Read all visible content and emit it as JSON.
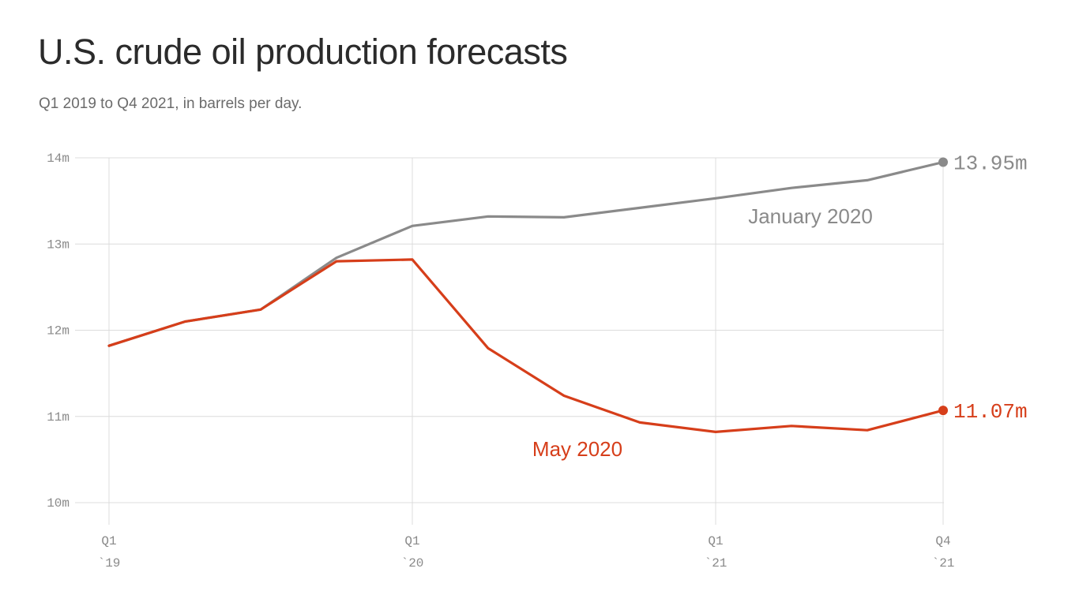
{
  "header": {
    "title": "U.S. crude oil production forecasts",
    "subtitle": "Q1 2019 to Q4 2021, in barrels per day."
  },
  "colors": {
    "january": "#8a8a8a",
    "may": "#d63e1a",
    "grid": "#dcdcdc",
    "tick_text": "#8a8a8a"
  },
  "chart_data": {
    "type": "line",
    "title": "U.S. crude oil production forecasts",
    "subtitle": "Q1 2019 to Q4 2021, in barrels per day.",
    "xlabel": "",
    "ylabel": "",
    "ylim": [
      10,
      14
    ],
    "y_unit": "million barrels per day",
    "y_ticks": [
      10,
      11,
      12,
      13,
      14
    ],
    "y_tick_labels": [
      "10m",
      "11m",
      "12m",
      "13m",
      "14m"
    ],
    "categories": [
      "Q1 2019",
      "Q2 2019",
      "Q3 2019",
      "Q4 2019",
      "Q1 2020",
      "Q2 2020",
      "Q3 2020",
      "Q4 2020",
      "Q1 2021",
      "Q2 2021",
      "Q3 2021",
      "Q4 2021"
    ],
    "x_ticks": [
      {
        "category": "Q1 2019",
        "line1": "Q1",
        "line2": "`19"
      },
      {
        "category": "Q1 2020",
        "line1": "Q1",
        "line2": "`20"
      },
      {
        "category": "Q1 2021",
        "line1": "Q1",
        "line2": "`21"
      },
      {
        "category": "Q4 2021",
        "line1": "Q4",
        "line2": "`21"
      }
    ],
    "grid": true,
    "legend": "direct labels",
    "series": [
      {
        "name": "January 2020",
        "color": "#8a8a8a",
        "values": [
          11.82,
          12.1,
          12.24,
          12.84,
          13.21,
          13.32,
          13.31,
          13.42,
          13.53,
          13.65,
          13.74,
          13.95
        ],
        "end_label": "13.95m"
      },
      {
        "name": "May 2020",
        "color": "#d63e1a",
        "values": [
          11.82,
          12.1,
          12.24,
          12.8,
          12.82,
          11.79,
          11.24,
          10.93,
          10.82,
          10.89,
          10.84,
          11.07
        ],
        "end_label": "11.07m"
      }
    ]
  }
}
